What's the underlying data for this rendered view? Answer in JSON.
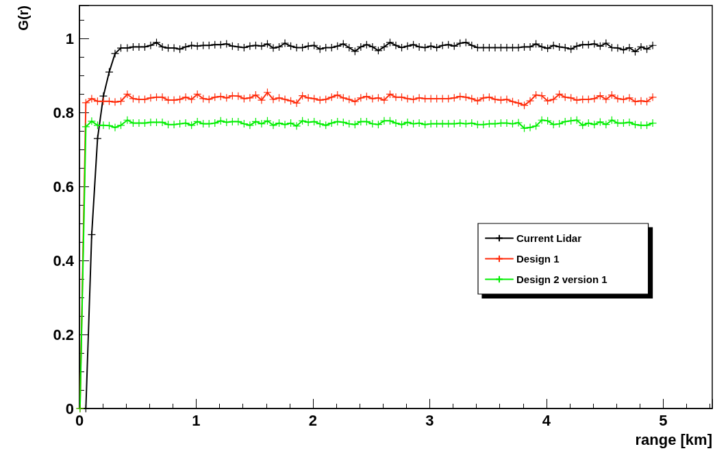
{
  "chart_data": {
    "type": "line",
    "xlabel": "range [km]",
    "ylabel": "G(r)",
    "xlim": [
      0,
      5.42
    ],
    "ylim": [
      0,
      1.09
    ],
    "xticks": [
      0,
      1,
      2,
      3,
      4,
      5
    ],
    "yticks": [
      0,
      0.2,
      0.4,
      0.6,
      0.8,
      1
    ],
    "grid": false,
    "legend": "right",
    "marker": "cross",
    "line_style": "solid",
    "x": [
      0.005,
      0.055,
      0.105,
      0.155,
      0.205,
      0.255,
      0.305,
      0.355,
      0.41,
      0.46,
      0.51,
      0.56,
      0.61,
      0.66,
      0.71,
      0.76,
      0.81,
      0.86,
      0.91,
      0.96,
      1.01,
      1.06,
      1.11,
      1.16,
      1.21,
      1.26,
      1.31,
      1.36,
      1.41,
      1.46,
      1.51,
      1.56,
      1.61,
      1.66,
      1.71,
      1.76,
      1.81,
      1.86,
      1.91,
      1.96,
      2.01,
      2.06,
      2.11,
      2.16,
      2.21,
      2.26,
      2.31,
      2.36,
      2.41,
      2.46,
      2.51,
      2.56,
      2.61,
      2.66,
      2.71,
      2.76,
      2.81,
      2.86,
      2.91,
      2.96,
      3.01,
      3.06,
      3.11,
      3.16,
      3.21,
      3.26,
      3.31,
      3.36,
      3.41,
      3.46,
      3.51,
      3.56,
      3.61,
      3.66,
      3.71,
      3.76,
      3.81,
      3.86,
      3.91,
      3.96,
      4.01,
      4.06,
      4.11,
      4.16,
      4.21,
      4.26,
      4.31,
      4.36,
      4.41,
      4.46,
      4.51,
      4.56,
      4.61,
      4.66,
      4.71,
      4.76,
      4.81,
      4.86,
      4.91
    ],
    "series": [
      {
        "name": "Current Lidar",
        "color": "#000000",
        "values": [
          null,
          0,
          0.47,
          0.73,
          0.845,
          0.91,
          0.96,
          0.975,
          0.975,
          0.978,
          0.978,
          0.978,
          0.982,
          0.99,
          0.978,
          0.975,
          0.975,
          0.972,
          0.978,
          0.982,
          0.98,
          0.982,
          0.982,
          0.984,
          0.984,
          0.986,
          0.98,
          0.978,
          0.976,
          0.98,
          0.982,
          0.98,
          0.986,
          0.975,
          0.978,
          0.988,
          0.98,
          0.976,
          0.976,
          0.98,
          0.982,
          0.972,
          0.976,
          0.976,
          0.98,
          0.986,
          0.976,
          0.966,
          0.978,
          0.984,
          0.978,
          0.968,
          0.978,
          0.99,
          0.982,
          0.976,
          0.98,
          0.984,
          0.978,
          0.976,
          0.98,
          0.976,
          0.982,
          0.984,
          0.98,
          0.988,
          0.99,
          0.982,
          0.976,
          0.976,
          0.976,
          0.976,
          0.976,
          0.976,
          0.976,
          0.976,
          0.978,
          0.978,
          0.986,
          0.978,
          0.974,
          0.982,
          0.978,
          0.976,
          0.972,
          0.98,
          0.984,
          0.984,
          0.986,
          0.98,
          0.988,
          0.976,
          0.975,
          0.97,
          0.976,
          0.965,
          0.978,
          0.972,
          0.982
        ]
      },
      {
        "name": "Design 1",
        "color": "#ff2a0a",
        "values": [
          0,
          0.827,
          0.838,
          0.831,
          0.831,
          0.831,
          0.829,
          0.831,
          0.85,
          0.838,
          0.836,
          0.836,
          0.84,
          0.842,
          0.842,
          0.834,
          0.834,
          0.836,
          0.842,
          0.836,
          0.85,
          0.838,
          0.836,
          0.842,
          0.844,
          0.84,
          0.846,
          0.845,
          0.838,
          0.84,
          0.848,
          0.834,
          0.855,
          0.836,
          0.84,
          0.836,
          0.832,
          0.826,
          0.846,
          0.84,
          0.838,
          0.834,
          0.836,
          0.842,
          0.848,
          0.84,
          0.836,
          0.83,
          0.84,
          0.844,
          0.838,
          0.84,
          0.834,
          0.85,
          0.842,
          0.842,
          0.838,
          0.836,
          0.84,
          0.838,
          0.838,
          0.838,
          0.838,
          0.838,
          0.84,
          0.844,
          0.842,
          0.838,
          0.832,
          0.84,
          0.842,
          0.836,
          0.834,
          0.836,
          0.83,
          0.826,
          0.82,
          0.832,
          0.848,
          0.846,
          0.832,
          0.836,
          0.85,
          0.842,
          0.84,
          0.834,
          0.836,
          0.836,
          0.838,
          0.846,
          0.836,
          0.848,
          0.838,
          0.836,
          0.84,
          0.83,
          0.832,
          0.83,
          0.842
        ]
      },
      {
        "name": "Design 2 version 1",
        "color": "#00ee00",
        "values": [
          0,
          0.762,
          0.777,
          0.766,
          0.766,
          0.765,
          0.76,
          0.766,
          0.78,
          0.772,
          0.772,
          0.772,
          0.774,
          0.774,
          0.774,
          0.768,
          0.768,
          0.77,
          0.772,
          0.766,
          0.776,
          0.77,
          0.77,
          0.772,
          0.778,
          0.774,
          0.776,
          0.776,
          0.77,
          0.766,
          0.776,
          0.77,
          0.778,
          0.766,
          0.772,
          0.768,
          0.772,
          0.764,
          0.778,
          0.774,
          0.776,
          0.77,
          0.766,
          0.772,
          0.776,
          0.774,
          0.77,
          0.768,
          0.776,
          0.776,
          0.77,
          0.768,
          0.778,
          0.778,
          0.772,
          0.768,
          0.774,
          0.77,
          0.772,
          0.768,
          0.77,
          0.77,
          0.77,
          0.77,
          0.77,
          0.772,
          0.77,
          0.772,
          0.768,
          0.768,
          0.77,
          0.77,
          0.772,
          0.772,
          0.77,
          0.773,
          0.758,
          0.76,
          0.764,
          0.78,
          0.778,
          0.768,
          0.77,
          0.776,
          0.778,
          0.78,
          0.766,
          0.772,
          0.768,
          0.775,
          0.768,
          0.78,
          0.772,
          0.772,
          0.774,
          0.768,
          0.766,
          0.766,
          0.772
        ]
      }
    ]
  }
}
